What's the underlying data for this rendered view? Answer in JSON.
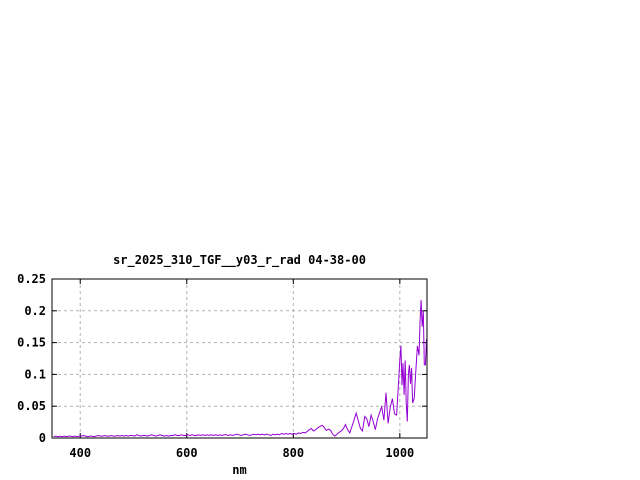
{
  "window": {
    "background_color": "#ffffff"
  },
  "chart_data": {
    "type": "line",
    "title": "sr_2025_310_TGF__y03_r_rad 04-38-00",
    "xlabel": "nm",
    "ylabel": "",
    "xlim": [
      347,
      1051
    ],
    "ylim": [
      0,
      0.25
    ],
    "grid": true,
    "legend_position": "none",
    "line_color": "#9400d3",
    "grid_color": "#b3b3b3",
    "border_color": "#000000",
    "text_color": "#000000",
    "x_ticks": [
      {
        "value": 400,
        "label": "400"
      },
      {
        "value": 600,
        "label": "600"
      },
      {
        "value": 800,
        "label": "800"
      },
      {
        "value": 1000,
        "label": "1000"
      }
    ],
    "y_ticks": [
      {
        "value": 0,
        "label": "0"
      },
      {
        "value": 0.05,
        "label": "0.05"
      },
      {
        "value": 0.1,
        "label": "0.1"
      },
      {
        "value": 0.15,
        "label": "0.15"
      },
      {
        "value": 0.2,
        "label": "0.2"
      },
      {
        "value": 0.25,
        "label": "0.25"
      }
    ],
    "series": [
      {
        "points": [
          [
            350,
            0.002
          ],
          [
            354,
            0.003
          ],
          [
            358,
            0.002
          ],
          [
            362,
            0.003
          ],
          [
            366,
            0.002
          ],
          [
            370,
            0.003
          ],
          [
            374,
            0.002
          ],
          [
            378,
            0.003
          ],
          [
            382,
            0.003
          ],
          [
            386,
            0.002
          ],
          [
            390,
            0.003
          ],
          [
            394,
            0.002
          ],
          [
            398,
            0.003
          ],
          [
            402,
            0.003
          ],
          [
            406,
            0.004
          ],
          [
            410,
            0.003
          ],
          [
            414,
            0.002
          ],
          [
            418,
            0.003
          ],
          [
            422,
            0.003
          ],
          [
            426,
            0.002
          ],
          [
            430,
            0.003
          ],
          [
            434,
            0.004
          ],
          [
            438,
            0.003
          ],
          [
            442,
            0.003
          ],
          [
            446,
            0.004
          ],
          [
            450,
            0.003
          ],
          [
            454,
            0.003
          ],
          [
            458,
            0.004
          ],
          [
            462,
            0.003
          ],
          [
            466,
            0.003
          ],
          [
            470,
            0.004
          ],
          [
            474,
            0.003
          ],
          [
            478,
            0.004
          ],
          [
            482,
            0.003
          ],
          [
            486,
            0.004
          ],
          [
            490,
            0.003
          ],
          [
            494,
            0.004
          ],
          [
            498,
            0.004
          ],
          [
            502,
            0.003
          ],
          [
            506,
            0.005
          ],
          [
            510,
            0.004
          ],
          [
            514,
            0.003
          ],
          [
            518,
            0.004
          ],
          [
            522,
            0.004
          ],
          [
            526,
            0.003
          ],
          [
            530,
            0.004
          ],
          [
            534,
            0.005
          ],
          [
            538,
            0.004
          ],
          [
            542,
            0.003
          ],
          [
            546,
            0.004
          ],
          [
            550,
            0.005
          ],
          [
            554,
            0.004
          ],
          [
            558,
            0.003
          ],
          [
            562,
            0.004
          ],
          [
            566,
            0.003
          ],
          [
            570,
            0.004
          ],
          [
            574,
            0.004
          ],
          [
            578,
            0.005
          ],
          [
            582,
            0.004
          ],
          [
            586,
            0.004
          ],
          [
            590,
            0.005
          ],
          [
            594,
            0.004
          ],
          [
            598,
            0.004
          ],
          [
            602,
            0.005
          ],
          [
            606,
            0.004
          ],
          [
            610,
            0.005
          ],
          [
            614,
            0.004
          ],
          [
            618,
            0.004
          ],
          [
            622,
            0.005
          ],
          [
            626,
            0.004
          ],
          [
            630,
            0.005
          ],
          [
            634,
            0.004
          ],
          [
            638,
            0.005
          ],
          [
            642,
            0.004
          ],
          [
            646,
            0.005
          ],
          [
            650,
            0.004
          ],
          [
            654,
            0.005
          ],
          [
            658,
            0.004
          ],
          [
            662,
            0.005
          ],
          [
            666,
            0.004
          ],
          [
            670,
            0.005
          ],
          [
            674,
            0.005
          ],
          [
            678,
            0.004
          ],
          [
            682,
            0.005
          ],
          [
            686,
            0.004
          ],
          [
            690,
            0.005
          ],
          [
            694,
            0.006
          ],
          [
            698,
            0.005
          ],
          [
            702,
            0.004
          ],
          [
            706,
            0.005
          ],
          [
            710,
            0.006
          ],
          [
            714,
            0.005
          ],
          [
            718,
            0.004
          ],
          [
            722,
            0.005
          ],
          [
            726,
            0.006
          ],
          [
            730,
            0.005
          ],
          [
            734,
            0.006
          ],
          [
            738,
            0.005
          ],
          [
            742,
            0.006
          ],
          [
            746,
            0.005
          ],
          [
            750,
            0.006
          ],
          [
            754,
            0.005
          ],
          [
            758,
            0.004
          ],
          [
            762,
            0.006
          ],
          [
            766,
            0.005
          ],
          [
            770,
            0.006
          ],
          [
            774,
            0.005
          ],
          [
            778,
            0.007
          ],
          [
            782,
            0.006
          ],
          [
            786,
            0.007
          ],
          [
            790,
            0.006
          ],
          [
            794,
            0.007
          ],
          [
            798,
            0.006
          ],
          [
            802,
            0.007
          ],
          [
            806,
            0.006
          ],
          [
            810,
            0.008
          ],
          [
            814,
            0.007
          ],
          [
            818,
            0.009
          ],
          [
            822,
            0.008
          ],
          [
            826,
            0.01
          ],
          [
            830,
            0.013
          ],
          [
            834,
            0.015
          ],
          [
            838,
            0.011
          ],
          [
            842,
            0.013
          ],
          [
            846,
            0.016
          ],
          [
            850,
            0.018
          ],
          [
            854,
            0.02
          ],
          [
            858,
            0.017
          ],
          [
            862,
            0.012
          ],
          [
            866,
            0.014
          ],
          [
            870,
            0.012
          ],
          [
            874,
            0.006
          ],
          [
            878,
            0.003
          ],
          [
            882,
            0.006
          ],
          [
            886,
            0.009
          ],
          [
            890,
            0.011
          ],
          [
            894,
            0.015
          ],
          [
            898,
            0.021
          ],
          [
            902,
            0.013
          ],
          [
            906,
            0.008
          ],
          [
            910,
            0.018
          ],
          [
            914,
            0.028
          ],
          [
            918,
            0.039
          ],
          [
            922,
            0.027
          ],
          [
            926,
            0.015
          ],
          [
            930,
            0.011
          ],
          [
            934,
            0.034
          ],
          [
            938,
            0.03
          ],
          [
            942,
            0.018
          ],
          [
            946,
            0.036
          ],
          [
            950,
            0.026
          ],
          [
            954,
            0.013
          ],
          [
            958,
            0.03
          ],
          [
            962,
            0.04
          ],
          [
            966,
            0.049
          ],
          [
            970,
            0.028
          ],
          [
            974,
            0.071
          ],
          [
            978,
            0.023
          ],
          [
            982,
            0.048
          ],
          [
            986,
            0.062
          ],
          [
            990,
            0.038
          ],
          [
            994,
            0.036
          ],
          [
            997,
            0.078
          ],
          [
            1000,
            0.122
          ],
          [
            1002,
            0.145
          ],
          [
            1004,
            0.083
          ],
          [
            1006,
            0.118
          ],
          [
            1008,
            0.068
          ],
          [
            1010,
            0.122
          ],
          [
            1012,
            0.055
          ],
          [
            1014,
            0.026
          ],
          [
            1016,
            0.1
          ],
          [
            1018,
            0.115
          ],
          [
            1020,
            0.085
          ],
          [
            1022,
            0.11
          ],
          [
            1024,
            0.055
          ],
          [
            1027,
            0.062
          ],
          [
            1030,
            0.105
          ],
          [
            1033,
            0.145
          ],
          [
            1036,
            0.13
          ],
          [
            1038,
            0.185
          ],
          [
            1040,
            0.217
          ],
          [
            1042,
            0.175
          ],
          [
            1044,
            0.2
          ],
          [
            1046,
            0.115
          ],
          [
            1048,
            0.115
          ],
          [
            1050,
            0.155
          ]
        ]
      }
    ]
  }
}
